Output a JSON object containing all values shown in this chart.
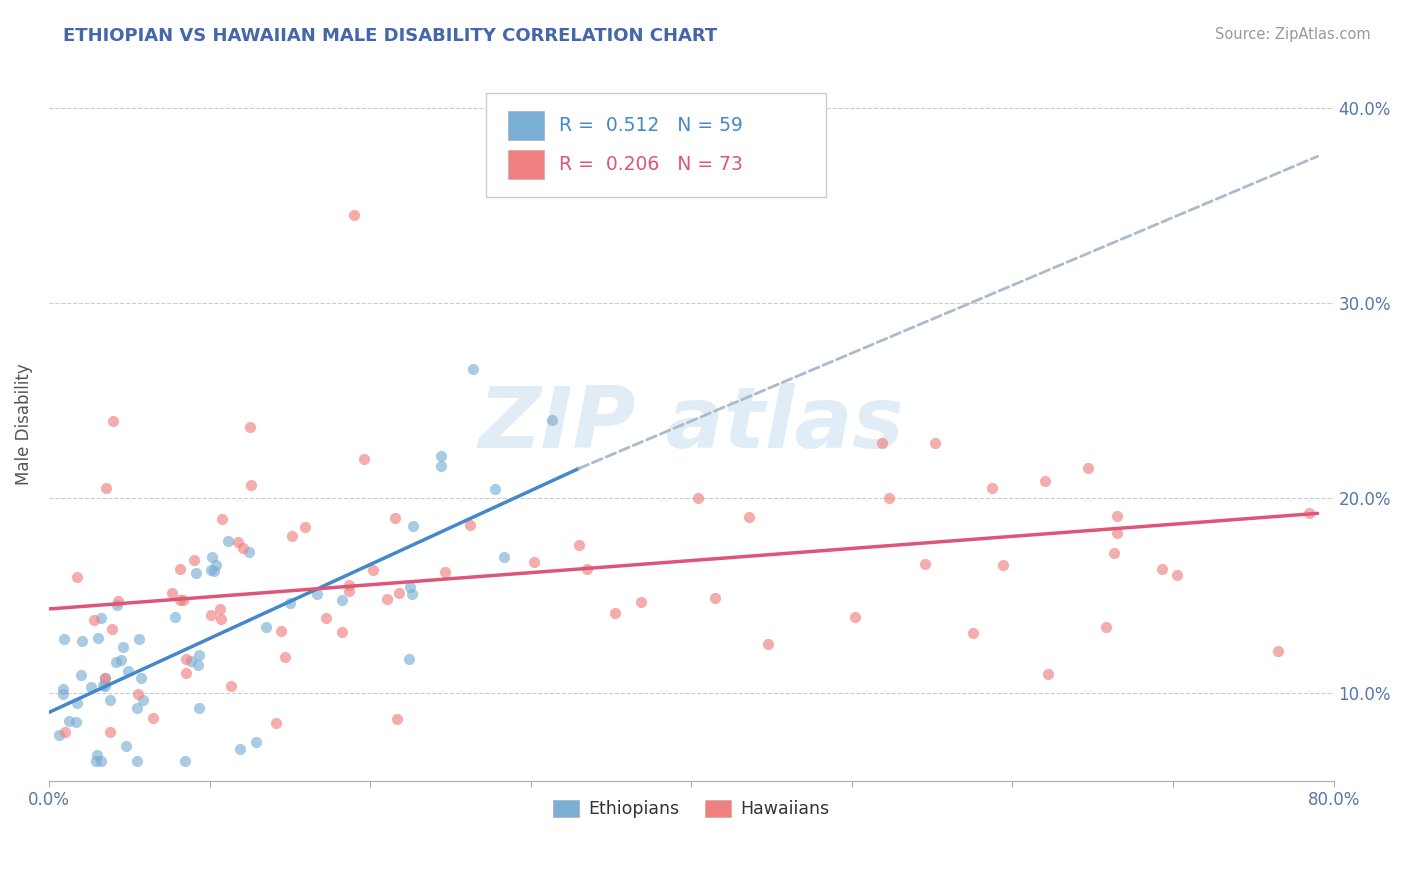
{
  "title": "ETHIOPIAN VS HAWAIIAN MALE DISABILITY CORRELATION CHART",
  "source_text": "Source: ZipAtlas.com",
  "ylabel_text": "Male Disability",
  "xlim": [
    0.0,
    0.8
  ],
  "ylim": [
    0.055,
    0.42
  ],
  "x_tick_positions": [
    0.0,
    0.1,
    0.2,
    0.3,
    0.4,
    0.5,
    0.6,
    0.7,
    0.8
  ],
  "x_tick_labels": [
    "0.0%",
    "",
    "",
    "",
    "",
    "",
    "",
    "",
    "80.0%"
  ],
  "y_tick_positions": [
    0.1,
    0.2,
    0.3,
    0.4
  ],
  "y_tick_labels": [
    "10.0%",
    "20.0%",
    "30.0%",
    "40.0%"
  ],
  "blue_color": "#7BAFD4",
  "pink_color": "#F08080",
  "blue_line_x": [
    0.0,
    0.33
  ],
  "blue_line_y": [
    0.09,
    0.215
  ],
  "pink_line_x": [
    0.0,
    0.79
  ],
  "pink_line_y": [
    0.143,
    0.192
  ],
  "dashed_line_x": [
    0.33,
    0.79
  ],
  "dashed_line_y": [
    0.215,
    0.375
  ],
  "watermark_color": "#C8DFF0"
}
